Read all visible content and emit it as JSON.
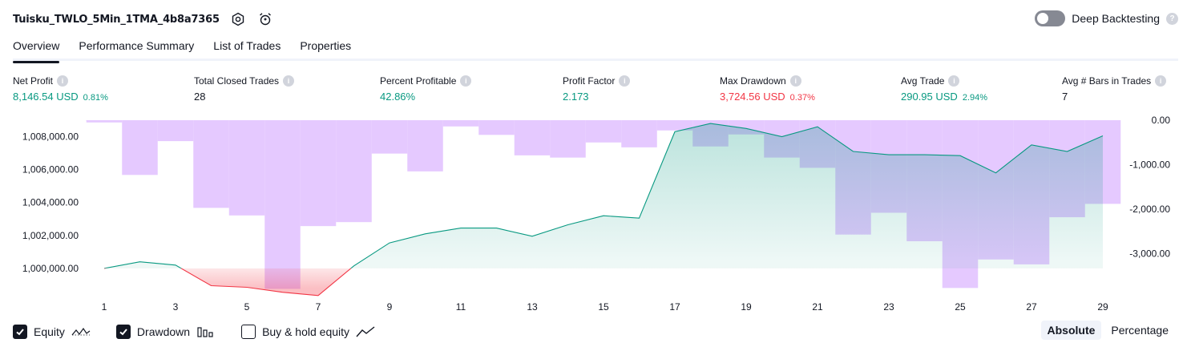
{
  "header": {
    "title": "Tuisku_TWLO_5Min_1TMA_4b8a7365",
    "deep_backtesting_label": "Deep Backtesting",
    "deep_backtesting_enabled": false,
    "help_glyph": "?"
  },
  "tabs": [
    {
      "label": "Overview",
      "active": true
    },
    {
      "label": "Performance Summary",
      "active": false
    },
    {
      "label": "List of Trades",
      "active": false
    },
    {
      "label": "Properties",
      "active": false
    }
  ],
  "metrics": [
    {
      "label": "Net Profit",
      "value": "8,146.54 USD",
      "pct": "0.81%",
      "color": "#089981"
    },
    {
      "label": "Total Closed Trades",
      "value": "28",
      "pct": "",
      "color": "#131722"
    },
    {
      "label": "Percent Profitable",
      "value": "42.86%",
      "pct": "",
      "color": "#089981"
    },
    {
      "label": "Profit Factor",
      "value": "2.173",
      "pct": "",
      "color": "#089981"
    },
    {
      "label": "Max Drawdown",
      "value": "3,724.56 USD",
      "pct": "0.37%",
      "color": "#f23645"
    },
    {
      "label": "Avg Trade",
      "value": "290.95 USD",
      "pct": "2.94%",
      "color": "#089981"
    },
    {
      "label": "Avg # Bars in Trades",
      "value": "7",
      "pct": "",
      "color": "#131722"
    }
  ],
  "info_glyph": "i",
  "chart_data": {
    "type": "line",
    "x_ticks": [
      1,
      3,
      5,
      7,
      9,
      11,
      13,
      15,
      17,
      19,
      21,
      23,
      25,
      27,
      29
    ],
    "left_axis": {
      "ticks": [
        1008000,
        1006000,
        1004000,
        1002000,
        1000000
      ],
      "tick_labels": [
        "1,008,000.00",
        "1,006,000.00",
        "1,004,000.00",
        "1,002,000.00",
        "1,000,000.00"
      ],
      "range": [
        998000,
        1009000
      ],
      "baseline": 1000000
    },
    "right_axis": {
      "ticks": [
        0,
        -1000,
        -2000,
        -3000
      ],
      "tick_labels": [
        "0.00",
        "-1,000.00",
        "-2,000.00",
        "-3,000.00"
      ],
      "range": [
        -3800,
        0
      ]
    },
    "series": [
      {
        "name": "Equity",
        "type": "area",
        "x": [
          1,
          2,
          3,
          4,
          5,
          6,
          7,
          8,
          9,
          10,
          11,
          12,
          13,
          14,
          15,
          16,
          17,
          18,
          19,
          20,
          21,
          22,
          23,
          24,
          25,
          26,
          27,
          28,
          29
        ],
        "values": [
          1000000,
          1000400,
          1000200,
          998950,
          998850,
          998550,
          998350,
          1000150,
          1001550,
          1002100,
          1002450,
          1002450,
          1001950,
          1002650,
          1003200,
          1003050,
          1008300,
          1008800,
          1008500,
          1008000,
          1008600,
          1007100,
          1006900,
          1006900,
          1006850,
          1005800,
          1007500,
          1007100,
          1008050
        ],
        "color_up": "#089981",
        "color_down": "#f23645"
      },
      {
        "name": "Drawdown",
        "type": "bar",
        "x": [
          1,
          2,
          3,
          4,
          5,
          6,
          7,
          8,
          9,
          10,
          11,
          12,
          13,
          14,
          15,
          16,
          17,
          18,
          19,
          20,
          21,
          22,
          23,
          24,
          25,
          26,
          27,
          28,
          29
        ],
        "values": [
          -50,
          -1230,
          -470,
          -1970,
          -2140,
          -3790,
          -2380,
          -2290,
          -750,
          -1150,
          -140,
          -330,
          -790,
          -840,
          -500,
          -610,
          -230,
          -590,
          -320,
          -840,
          -1070,
          -2570,
          -2080,
          -2720,
          -3770,
          -3130,
          -3240,
          -2180,
          -1880
        ],
        "color": "#e1bfff"
      }
    ]
  },
  "legend": [
    {
      "label": "Equity",
      "checked": true,
      "icon": "equity-line-icon"
    },
    {
      "label": "Drawdown",
      "checked": true,
      "icon": "drawdown-bars-icon"
    },
    {
      "label": "Buy & hold equity",
      "checked": false,
      "icon": "buy-hold-line-icon"
    }
  ],
  "modes": [
    {
      "label": "Absolute",
      "active": true
    },
    {
      "label": "Percentage",
      "active": false
    }
  ]
}
